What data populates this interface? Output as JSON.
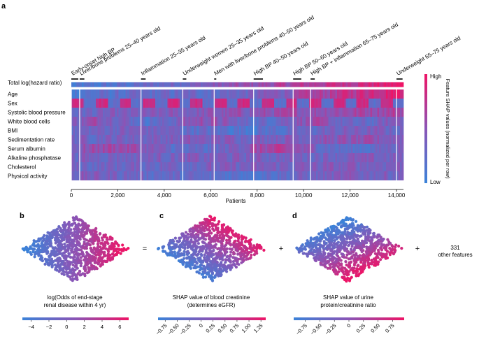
{
  "panel_labels": [
    "a",
    "b",
    "c",
    "d"
  ],
  "colors": {
    "low": "#3b82d8",
    "mid": "#8a55b6",
    "high": "#ee1466"
  },
  "chart_data": [
    {
      "type": "heatmap",
      "panel": "a",
      "xlabel": "Patients",
      "xlim": [
        0,
        14300
      ],
      "xticks": [
        0,
        2000,
        4000,
        6000,
        8000,
        10000,
        12000,
        14000
      ],
      "xtick_labels": [
        "0",
        "2,000",
        "4,000",
        "6,000",
        "8,000",
        "10,000",
        "12,000",
        "14,000"
      ],
      "rows": [
        "Total log(hazard ratio)",
        "Age",
        "Sex",
        "Systolic blood pressure",
        "White blood cells",
        "BMI",
        "Sedimentation rate",
        "Serum albumin",
        "Alkaline phosphatase",
        "Cholesterol",
        "Physical activity"
      ],
      "colorbar": {
        "label": "Feature SHAP values (normalized per row)",
        "high": "High",
        "low": "Low"
      },
      "clusters": [
        {
          "label": "Early-onset high BP",
          "start": 0,
          "end": 300
        },
        {
          "label": "Liver/bone problems 25–40 years old",
          "start": 360,
          "end": 560
        },
        {
          "label": "Inflammation 25–35 years old",
          "start": 3000,
          "end": 3200
        },
        {
          "label": "Underweight women 25–35 years old",
          "start": 4800,
          "end": 4950
        },
        {
          "label": "Men with liver/bone problems 40–50 years old",
          "start": 6150,
          "end": 6230
        },
        {
          "label": "High BP 40–50 years old",
          "start": 7850,
          "end": 8250
        },
        {
          "label": "High BP 50–60 years old",
          "start": 9550,
          "end": 9900
        },
        {
          "label": "High BP + inflammation 65–75 years old",
          "start": 10300,
          "end": 10480
        },
        {
          "label": "Underweight 65–75 years old",
          "start": 14000,
          "end": 14260
        }
      ]
    },
    {
      "type": "scatter",
      "panel": "b",
      "xlabel": "log(Odds of end-stage renal disease within 4 yr)",
      "colorbar_ticks": [
        -4,
        -2,
        0,
        2,
        4,
        6
      ],
      "colorbar_range": [
        -5,
        7
      ]
    },
    {
      "type": "scatter",
      "panel": "c",
      "xlabel": "SHAP value of blood creatinine (determines eGFR)",
      "colorbar_ticks": [
        -0.75,
        -0.5,
        -0.25,
        0,
        0.25,
        0.5,
        0.75,
        1.0,
        1.25
      ],
      "colorbar_tick_labels": [
        "−0.75",
        "−0.50",
        "−0.25",
        "0",
        "0.25",
        "0.50",
        "0.75",
        "1.00",
        "1.25"
      ],
      "colorbar_range": [
        -0.9,
        1.35
      ]
    },
    {
      "type": "scatter",
      "panel": "d",
      "xlabel": "SHAP value of urine protein/creatinine ratio",
      "colorbar_ticks": [
        -0.75,
        -0.5,
        -0.25,
        0,
        0.25,
        0.5,
        0.75
      ],
      "colorbar_tick_labels": [
        "−0.75",
        "−0.50",
        "−0.25",
        "0",
        "0.25",
        "0.50",
        "0.75"
      ],
      "colorbar_range": [
        -0.95,
        0.95
      ]
    }
  ],
  "equation": {
    "equals": "=",
    "plus1": "+",
    "plus2": "+",
    "other_count": "331",
    "other_text": "other features"
  }
}
